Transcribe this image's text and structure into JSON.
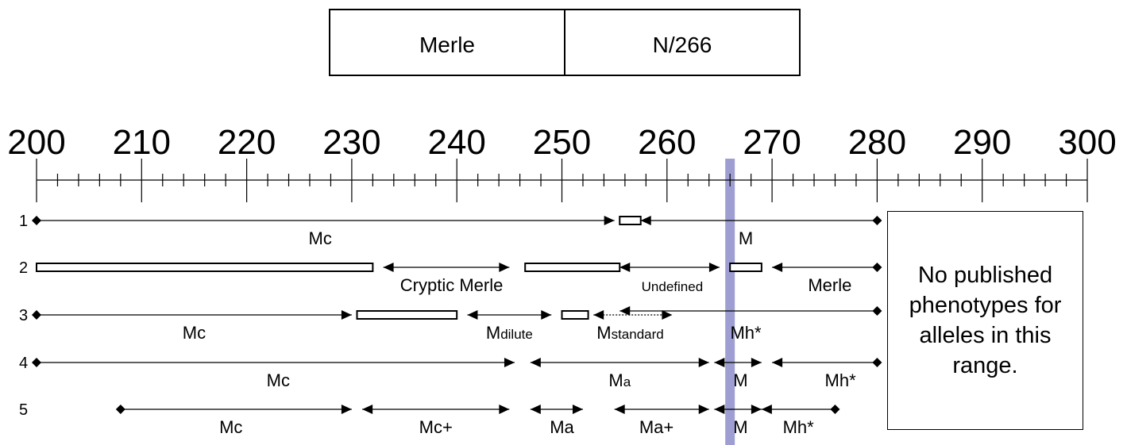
{
  "header": {
    "gene": "Merle",
    "genotype": "N/266"
  },
  "scale": {
    "min": 200,
    "max": 300,
    "major_step": 10,
    "minor_step": 2,
    "labels": [
      "200",
      "210",
      "220",
      "230",
      "240",
      "250",
      "260",
      "270",
      "280",
      "290",
      "300"
    ]
  },
  "marker": {
    "value": 266,
    "color": "#9e9ed2"
  },
  "rows": [
    {
      "number": "1",
      "arrows": [
        {
          "from": 200,
          "to": 255,
          "left": "diamond",
          "right": "arrow"
        },
        {
          "from": 257.5,
          "to": 280,
          "left": "arrow",
          "right": "diamond"
        }
      ],
      "gaps": [
        {
          "from": 255.5,
          "to": 257.5
        }
      ],
      "labels": [
        {
          "text": "Mc",
          "sub": "",
          "at": 227
        },
        {
          "text": "M",
          "sub": "",
          "at": 267.5
        }
      ]
    },
    {
      "number": "2",
      "arrows": [
        {
          "from": 233,
          "to": 245,
          "left": "arrow",
          "right": "arrow"
        },
        {
          "from": 255.5,
          "to": 265,
          "left": "arrow",
          "right": "arrow"
        },
        {
          "from": 270,
          "to": 280,
          "left": "arrow",
          "right": "diamond"
        }
      ],
      "gaps": [
        {
          "from": 200,
          "to": 232
        },
        {
          "from": 246.5,
          "to": 255.5
        },
        {
          "from": 266,
          "to": 269
        }
      ],
      "labels": [
        {
          "text": "Cryptic Merle",
          "sub": "",
          "at": 239.5
        },
        {
          "text": "Undefined",
          "sub": "",
          "at": 260.5,
          "small": true
        },
        {
          "text": "Merle",
          "sub": "",
          "at": 275.5
        }
      ]
    },
    {
      "number": "3",
      "arrows": [
        {
          "from": 200,
          "to": 230,
          "left": "diamond",
          "right": "arrow"
        },
        {
          "from": 241,
          "to": 249,
          "left": "arrow",
          "right": "arrow"
        },
        {
          "from": 253,
          "to": 260.5,
          "left": "arrow",
          "right": "arrow",
          "dotted": true
        },
        {
          "from": 255.5,
          "to": 280,
          "left": "arrow",
          "right": "diamond",
          "offset": -5
        }
      ],
      "gaps": [
        {
          "from": 230.5,
          "to": 240
        },
        {
          "from": 250,
          "to": 252.5
        }
      ],
      "labels": [
        {
          "text": "Mc",
          "sub": "",
          "at": 215
        },
        {
          "text": "M",
          "sub": "dilute",
          "at": 245
        },
        {
          "text": "M",
          "sub": "standard",
          "at": 256.5
        },
        {
          "text": "Mh*",
          "sub": "",
          "at": 267.5
        }
      ]
    },
    {
      "number": "4",
      "arrows": [
        {
          "from": 200,
          "to": 245.5,
          "left": "diamond",
          "right": "arrow"
        },
        {
          "from": 247,
          "to": 264,
          "left": "arrow",
          "right": "arrow"
        },
        {
          "from": 264.5,
          "to": 269,
          "left": "arrow",
          "right": "arrow"
        },
        {
          "from": 270,
          "to": 280,
          "left": "arrow",
          "right": "diamond"
        }
      ],
      "gaps": [],
      "labels": [
        {
          "text": "Mc",
          "sub": "",
          "at": 223
        },
        {
          "text": "M",
          "sub": "a",
          "at": 255.5
        },
        {
          "text": "M",
          "sub": "",
          "at": 267
        },
        {
          "text": "Mh*",
          "sub": "",
          "at": 276.5
        }
      ]
    },
    {
      "number": "5",
      "arrows": [
        {
          "from": 208,
          "to": 230,
          "left": "diamond",
          "right": "arrow"
        },
        {
          "from": 231,
          "to": 245,
          "left": "arrow",
          "right": "arrow"
        },
        {
          "from": 247,
          "to": 252,
          "left": "arrow",
          "right": "arrow"
        },
        {
          "from": 255,
          "to": 264,
          "left": "arrow",
          "right": "arrow"
        },
        {
          "from": 264.5,
          "to": 269,
          "left": "arrow",
          "right": "arrow"
        },
        {
          "from": 269,
          "to": 276,
          "left": "arrow",
          "right": "diamond"
        }
      ],
      "gaps": [],
      "labels": [
        {
          "text": "Mc",
          "sub": "",
          "at": 218.5
        },
        {
          "text": "Mc+",
          "sub": "",
          "at": 238
        },
        {
          "text": "Ma",
          "sub": "",
          "at": 250
        },
        {
          "text": "Ma+",
          "sub": "",
          "at": 259
        },
        {
          "text": "M",
          "sub": "",
          "at": 267
        },
        {
          "text": "Mh*",
          "sub": "",
          "at": 272.5
        }
      ]
    }
  ],
  "note": {
    "lines": [
      "No published",
      "phenotypes for",
      "alleles in this",
      "range."
    ]
  }
}
